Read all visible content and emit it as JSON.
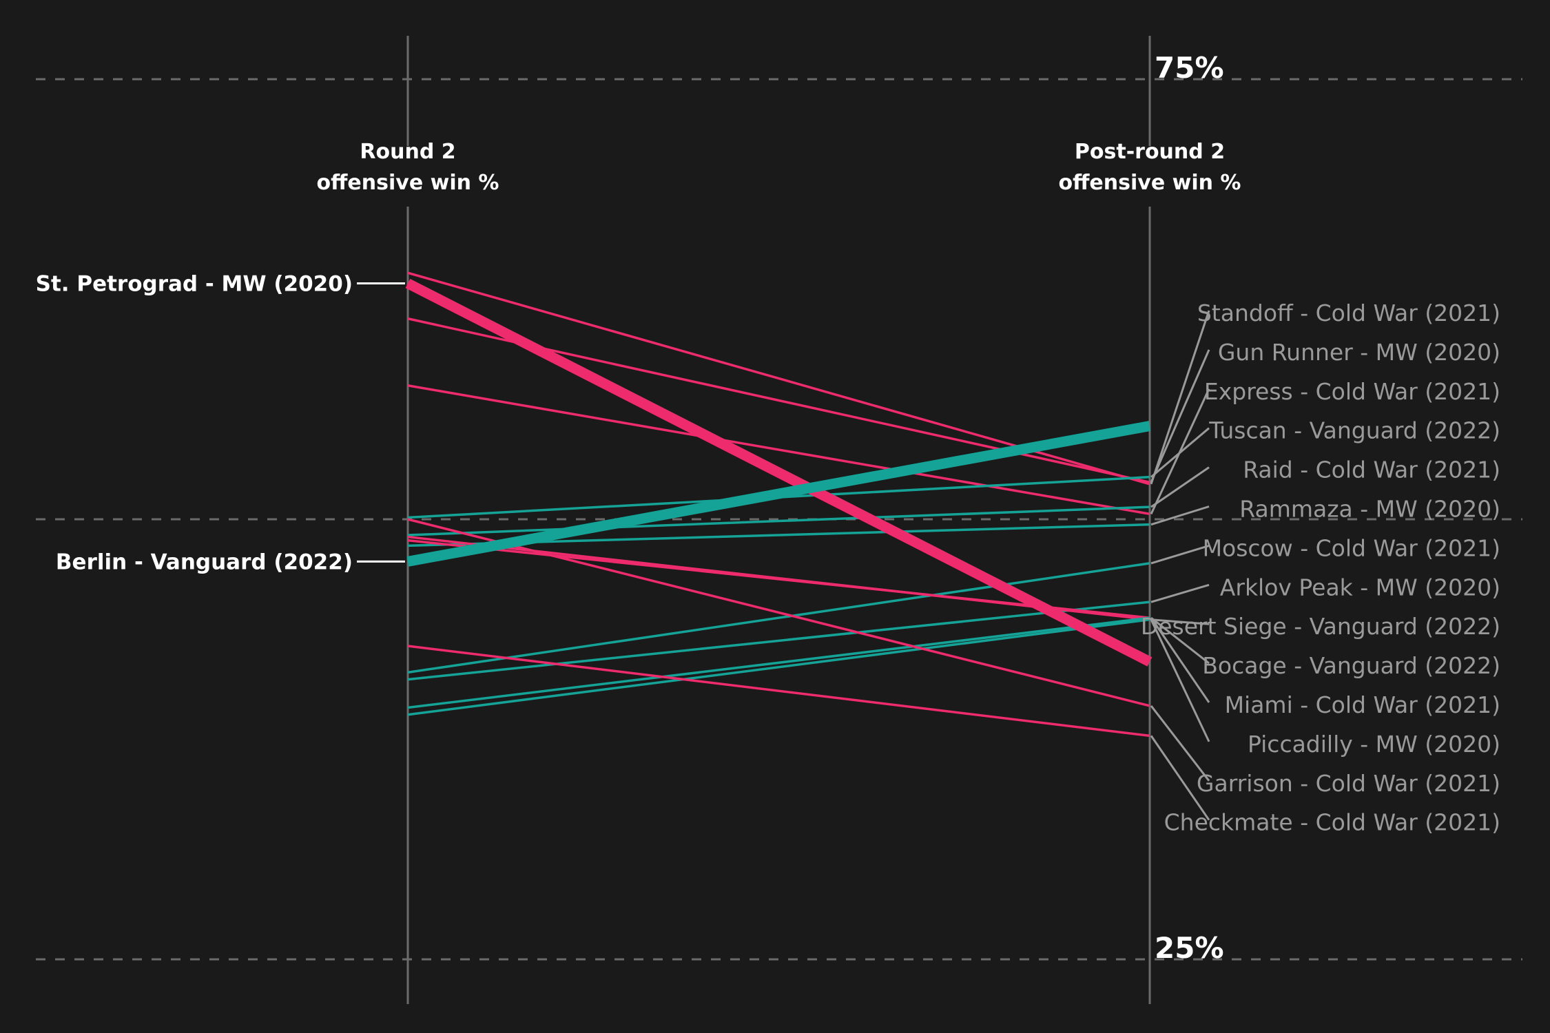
{
  "chart_data": {
    "type": "slope",
    "title": "",
    "axes": {
      "left": {
        "line1": "Round 2",
        "line2": "offensive win %"
      },
      "right": {
        "line1": "Post-round 2",
        "line2": "offensive win %"
      }
    },
    "ylim": [
      25,
      75
    ],
    "gridlines": [
      {
        "value": 75,
        "label": "75%"
      },
      {
        "value": 50,
        "label": ""
      },
      {
        "value": 25,
        "label": "25%"
      }
    ],
    "colors": {
      "up": "#14a396",
      "down": "#ee2b6c",
      "background": "#1a1a1a",
      "grid": "#6b6b6b",
      "connector": "#9a9a9a"
    },
    "series": [
      {
        "name": "St. Petrograd - MW (2020)",
        "start": 63.4,
        "end": 41.9,
        "highlight": true,
        "label_side": "left"
      },
      {
        "name": "Berlin - Vanguard (2022)",
        "start": 47.6,
        "end": 55.3,
        "highlight": true,
        "label_side": "left"
      },
      {
        "name": "Standoff - Cold War (2021)",
        "start": 64.0,
        "end": 52.0,
        "label_side": "right"
      },
      {
        "name": "Gun Runner - MW (2020)",
        "start": 61.4,
        "end": 52.1,
        "label_side": "right"
      },
      {
        "name": "Express - Cold War (2021)",
        "start": 57.6,
        "end": 50.3,
        "label_side": "right"
      },
      {
        "name": "Tuscan - Vanguard (2022)",
        "start": 50.1,
        "end": 52.4,
        "label_side": "right"
      },
      {
        "name": "Raid - Cold War (2021)",
        "start": 49.1,
        "end": 50.7,
        "label_side": "right"
      },
      {
        "name": "Rammaza - MW (2020)",
        "start": 48.5,
        "end": 49.7,
        "label_side": "right"
      },
      {
        "name": "Moscow - Cold War (2021)",
        "start": 41.3,
        "end": 47.5,
        "label_side": "right"
      },
      {
        "name": "Arklov Peak - MW (2020)",
        "start": 40.9,
        "end": 45.3,
        "label_side": "right"
      },
      {
        "name": "Desert Siege - Vanguard (2022)",
        "start": 49.0,
        "end": 44.3,
        "label_side": "right"
      },
      {
        "name": "Bocage - Vanguard (2022)",
        "start": 48.8,
        "end": 44.4,
        "label_side": "right"
      },
      {
        "name": "Miami - Cold War (2021)",
        "start": 39.3,
        "end": 44.4,
        "label_side": "right"
      },
      {
        "name": "Piccadilly - MW (2020)",
        "start": 38.9,
        "end": 44.3,
        "label_side": "right"
      },
      {
        "name": "Garrison - Cold War (2021)",
        "start": 50.0,
        "end": 39.4,
        "label_side": "right"
      },
      {
        "name": "Checkmate - Cold War (2021)",
        "start": 42.8,
        "end": 37.7,
        "label_side": "right"
      }
    ]
  }
}
